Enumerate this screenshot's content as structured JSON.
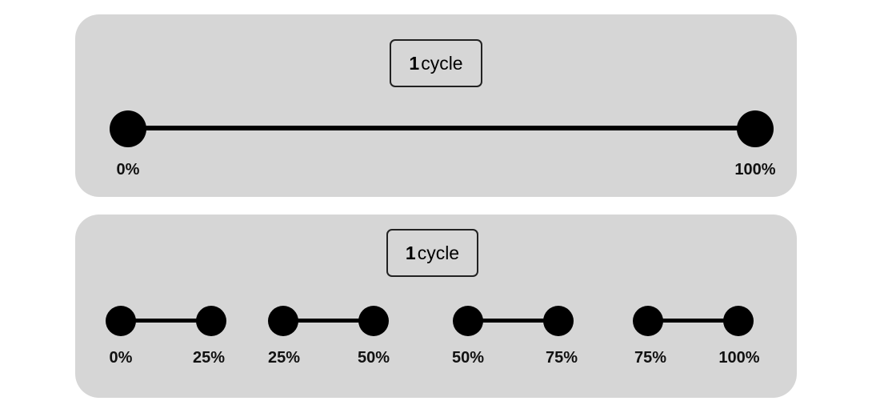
{
  "top": {
    "label_number": "1",
    "label_unit": "cycle",
    "start_label": "0%",
    "end_label": "100%"
  },
  "bottom": {
    "label_number": "1",
    "label_unit": "cycle",
    "segments": [
      {
        "start_label": "0%",
        "end_label": "25%"
      },
      {
        "start_label": "25%",
        "end_label": "50%"
      },
      {
        "start_label": "50%",
        "end_label": "75%"
      },
      {
        "start_label": "75%",
        "end_label": "100%"
      }
    ]
  },
  "colors": {
    "panel": "#d6d6d6",
    "line": "#000000"
  }
}
